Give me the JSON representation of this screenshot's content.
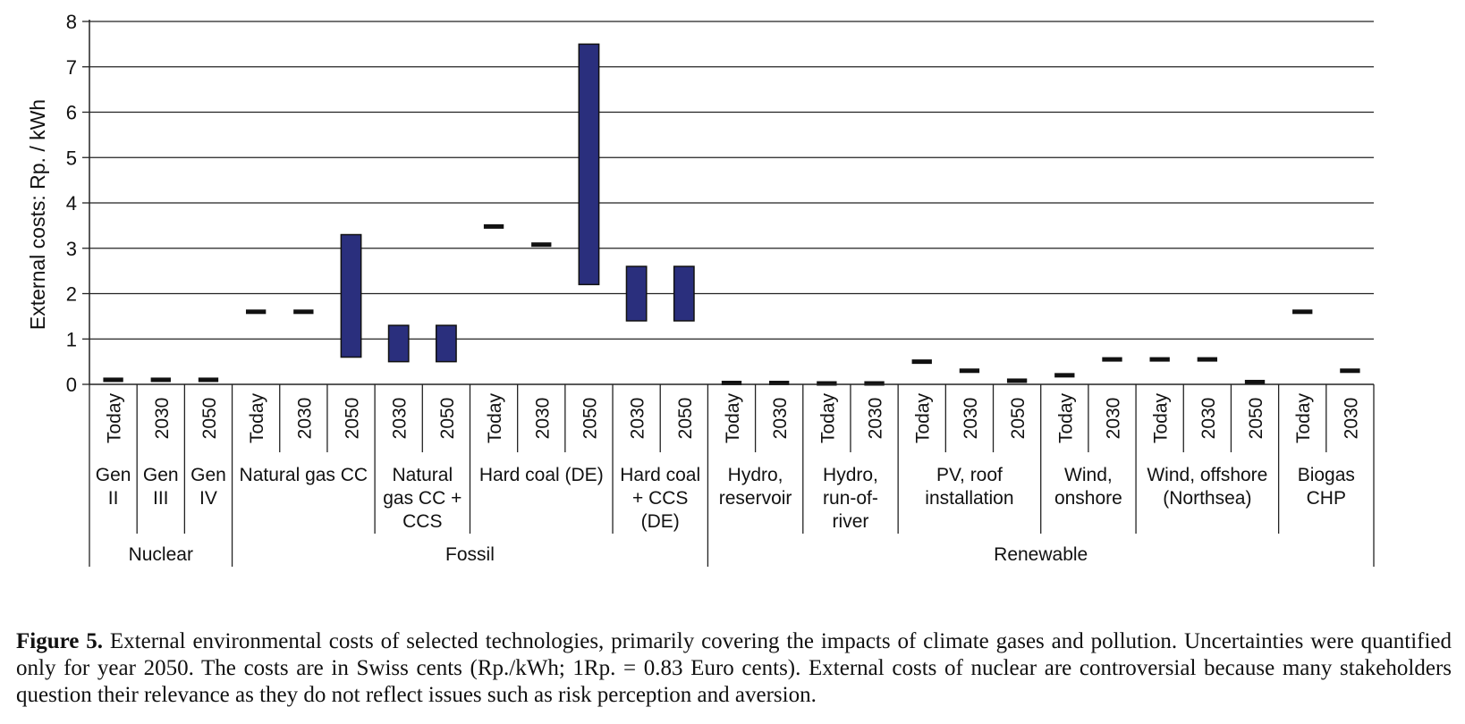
{
  "chart_data": {
    "type": "bar",
    "subtype": "floating-range",
    "ylabel": "External costs: Rp. / kWh",
    "ylim": [
      0,
      8
    ],
    "yticks": [
      "0",
      "1",
      "2",
      "3",
      "4",
      "5",
      "6",
      "7",
      "8"
    ],
    "grid": true,
    "bar_color": "#2a2f7d",
    "categories": [
      {
        "year": "Today",
        "low": 0.1,
        "high": 0.1
      },
      {
        "year": "2030",
        "low": 0.1,
        "high": 0.1
      },
      {
        "year": "2050",
        "low": 0.1,
        "high": 0.1
      },
      {
        "year": "Today",
        "low": 1.6,
        "high": 1.6
      },
      {
        "year": "2030",
        "low": 1.6,
        "high": 1.6
      },
      {
        "year": "2050",
        "low": 0.6,
        "high": 3.3
      },
      {
        "year": "2030",
        "low": 0.5,
        "high": 1.3
      },
      {
        "year": "2050",
        "low": 0.5,
        "high": 1.3
      },
      {
        "year": "Today",
        "low": 3.48,
        "high": 3.48
      },
      {
        "year": "2030",
        "low": 3.08,
        "high": 3.08
      },
      {
        "year": "2050",
        "low": 2.2,
        "high": 7.5
      },
      {
        "year": "2030",
        "low": 1.4,
        "high": 2.6
      },
      {
        "year": "2050",
        "low": 1.4,
        "high": 2.6
      },
      {
        "year": "Today",
        "low": 0.03,
        "high": 0.03
      },
      {
        "year": "2030",
        "low": 0.03,
        "high": 0.03
      },
      {
        "year": "Today",
        "low": 0.02,
        "high": 0.02
      },
      {
        "year": "2030",
        "low": 0.02,
        "high": 0.02
      },
      {
        "year": "Today",
        "low": 0.5,
        "high": 0.5
      },
      {
        "year": "2030",
        "low": 0.3,
        "high": 0.3
      },
      {
        "year": "2050",
        "low": 0.08,
        "high": 0.08
      },
      {
        "year": "Today",
        "low": 0.2,
        "high": 0.2
      },
      {
        "year": "2030",
        "low": 0.55,
        "high": 0.55
      },
      {
        "year": "Today",
        "low": 0.55,
        "high": 0.55
      },
      {
        "year": "2030",
        "low": 0.55,
        "high": 0.55
      },
      {
        "year": "2050",
        "low": 0.05,
        "high": 0.05
      },
      {
        "year": "Today",
        "low": 1.6,
        "high": 1.6
      },
      {
        "year": "2030",
        "low": 0.3,
        "high": 0.3
      }
    ],
    "technologies": [
      {
        "label": "Gen II",
        "lines": [
          "Gen",
          "II"
        ],
        "count": 1
      },
      {
        "label": "Gen III",
        "lines": [
          "Gen",
          "III"
        ],
        "count": 1
      },
      {
        "label": "Gen IV",
        "lines": [
          "Gen",
          "IV"
        ],
        "count": 1
      },
      {
        "label": "Natural gas CC",
        "lines": [
          "Natural gas CC"
        ],
        "count": 3
      },
      {
        "label": "Natural gas CC + CCS",
        "lines": [
          "Natural",
          "gas CC +",
          "CCS"
        ],
        "count": 2
      },
      {
        "label": "Hard coal (DE)",
        "lines": [
          "Hard coal (DE)"
        ],
        "count": 3
      },
      {
        "label": "Hard coal + CCS (DE)",
        "lines": [
          "Hard coal",
          "+ CCS",
          "(DE)"
        ],
        "count": 2
      },
      {
        "label": "Hydro, reservoir",
        "lines": [
          "Hydro,",
          "reservoir"
        ],
        "count": 2
      },
      {
        "label": "Hydro, run-of-river",
        "lines": [
          "Hydro,",
          "run-of-",
          "river"
        ],
        "count": 2
      },
      {
        "label": "PV, roof installation",
        "lines": [
          "PV, roof",
          "installation"
        ],
        "count": 3
      },
      {
        "label": "Wind, onshore",
        "lines": [
          "Wind,",
          "onshore"
        ],
        "count": 2
      },
      {
        "label": "Wind, offshore (Northsea)",
        "lines": [
          "Wind, offshore",
          "(Northsea)"
        ],
        "count": 3
      },
      {
        "label": "Biogas CHP",
        "lines": [
          "Biogas",
          "CHP"
        ],
        "count": 2
      }
    ],
    "groups": [
      {
        "label": "Nuclear",
        "count": 3
      },
      {
        "label": "Fossil",
        "count": 10
      },
      {
        "label": "Renewable",
        "count": 14
      }
    ]
  },
  "caption": {
    "label": "Figure 5.",
    "text": "External environmental costs of selected technologies, primarily covering the impacts of climate gases and pollution. Uncertainties were quantified only for year 2050. The costs are in Swiss cents (Rp./kWh; 1Rp. = 0.83 Euro cents). External costs of nuclear are controversial because many stakeholders question their relevance as they do not reflect issues such as risk perception and aversion."
  }
}
